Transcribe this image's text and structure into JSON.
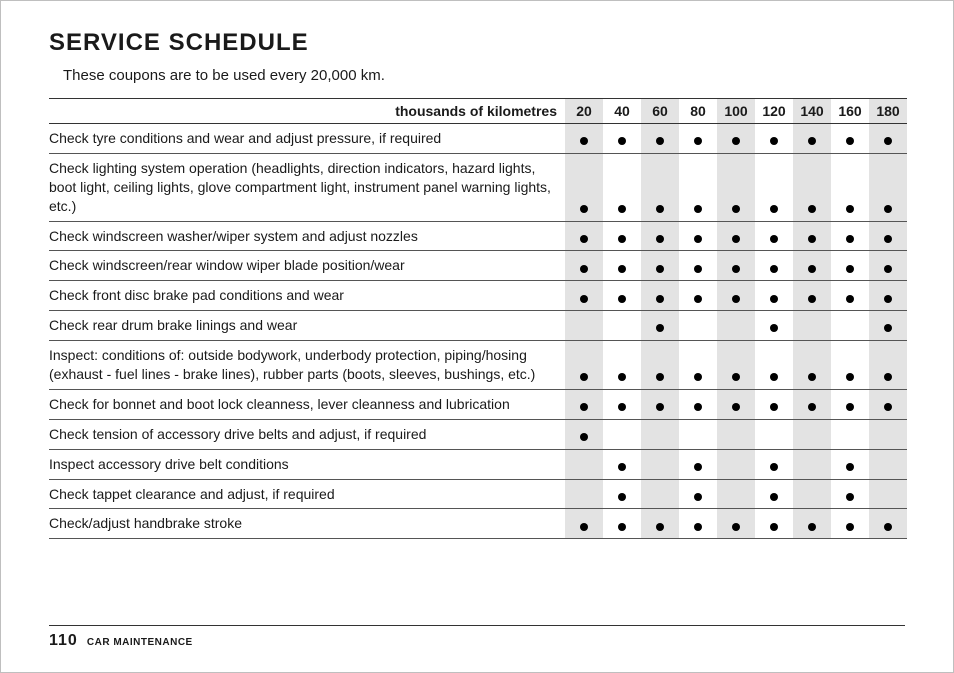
{
  "title": "SERVICE SCHEDULE",
  "intro": "These coupons are to be used every 20,000 km.",
  "header_label": "thousands of kilometres",
  "km_columns": [
    "20",
    "40",
    "60",
    "80",
    "100",
    "120",
    "140",
    "160",
    "180"
  ],
  "rows": [
    {
      "desc": "Check tyre conditions and wear and adjust pressure, if required",
      "marks": [
        1,
        1,
        1,
        1,
        1,
        1,
        1,
        1,
        1
      ]
    },
    {
      "desc": "Check lighting system operation (headlights, direction indicators, hazard lights, boot light, ceiling lights, glove compartment light, instrument panel warning lights, etc.)",
      "marks": [
        1,
        1,
        1,
        1,
        1,
        1,
        1,
        1,
        1
      ]
    },
    {
      "desc": "Check windscreen washer/wiper system and adjust nozzles",
      "marks": [
        1,
        1,
        1,
        1,
        1,
        1,
        1,
        1,
        1
      ]
    },
    {
      "desc": "Check windscreen/rear window wiper blade position/wear",
      "marks": [
        1,
        1,
        1,
        1,
        1,
        1,
        1,
        1,
        1
      ]
    },
    {
      "desc": "Check front disc brake pad conditions and wear",
      "marks": [
        1,
        1,
        1,
        1,
        1,
        1,
        1,
        1,
        1
      ]
    },
    {
      "desc": "Check rear drum brake linings and wear",
      "marks": [
        0,
        0,
        1,
        0,
        0,
        1,
        0,
        0,
        1
      ]
    },
    {
      "desc": "Inspect: conditions of: outside bodywork, underbody protection, piping/hosing (exhaust - fuel lines - brake lines), rubber parts (boots, sleeves, bushings, etc.)",
      "marks": [
        1,
        1,
        1,
        1,
        1,
        1,
        1,
        1,
        1
      ]
    },
    {
      "desc": "Check for bonnet and boot lock cleanness, lever cleanness and lubrication",
      "marks": [
        1,
        1,
        1,
        1,
        1,
        1,
        1,
        1,
        1
      ]
    },
    {
      "desc": "Check tension of accessory drive belts and adjust, if required",
      "marks": [
        1,
        0,
        0,
        0,
        0,
        0,
        0,
        0,
        0
      ]
    },
    {
      "desc": "Inspect accessory drive belt conditions",
      "marks": [
        0,
        1,
        0,
        1,
        0,
        1,
        0,
        1,
        0
      ]
    },
    {
      "desc": "Check tappet clearance and adjust, if required",
      "marks": [
        0,
        1,
        0,
        1,
        0,
        1,
        0,
        1,
        0
      ]
    },
    {
      "desc": "Check/adjust handbrake stroke",
      "marks": [
        1,
        1,
        1,
        1,
        1,
        1,
        1,
        1,
        1
      ]
    }
  ],
  "footer_page": "110",
  "footer_section": "CAR MAINTENANCE",
  "colors": {
    "stripe": "#e3e3e3",
    "rule": "#333333",
    "dot": "#000000"
  }
}
